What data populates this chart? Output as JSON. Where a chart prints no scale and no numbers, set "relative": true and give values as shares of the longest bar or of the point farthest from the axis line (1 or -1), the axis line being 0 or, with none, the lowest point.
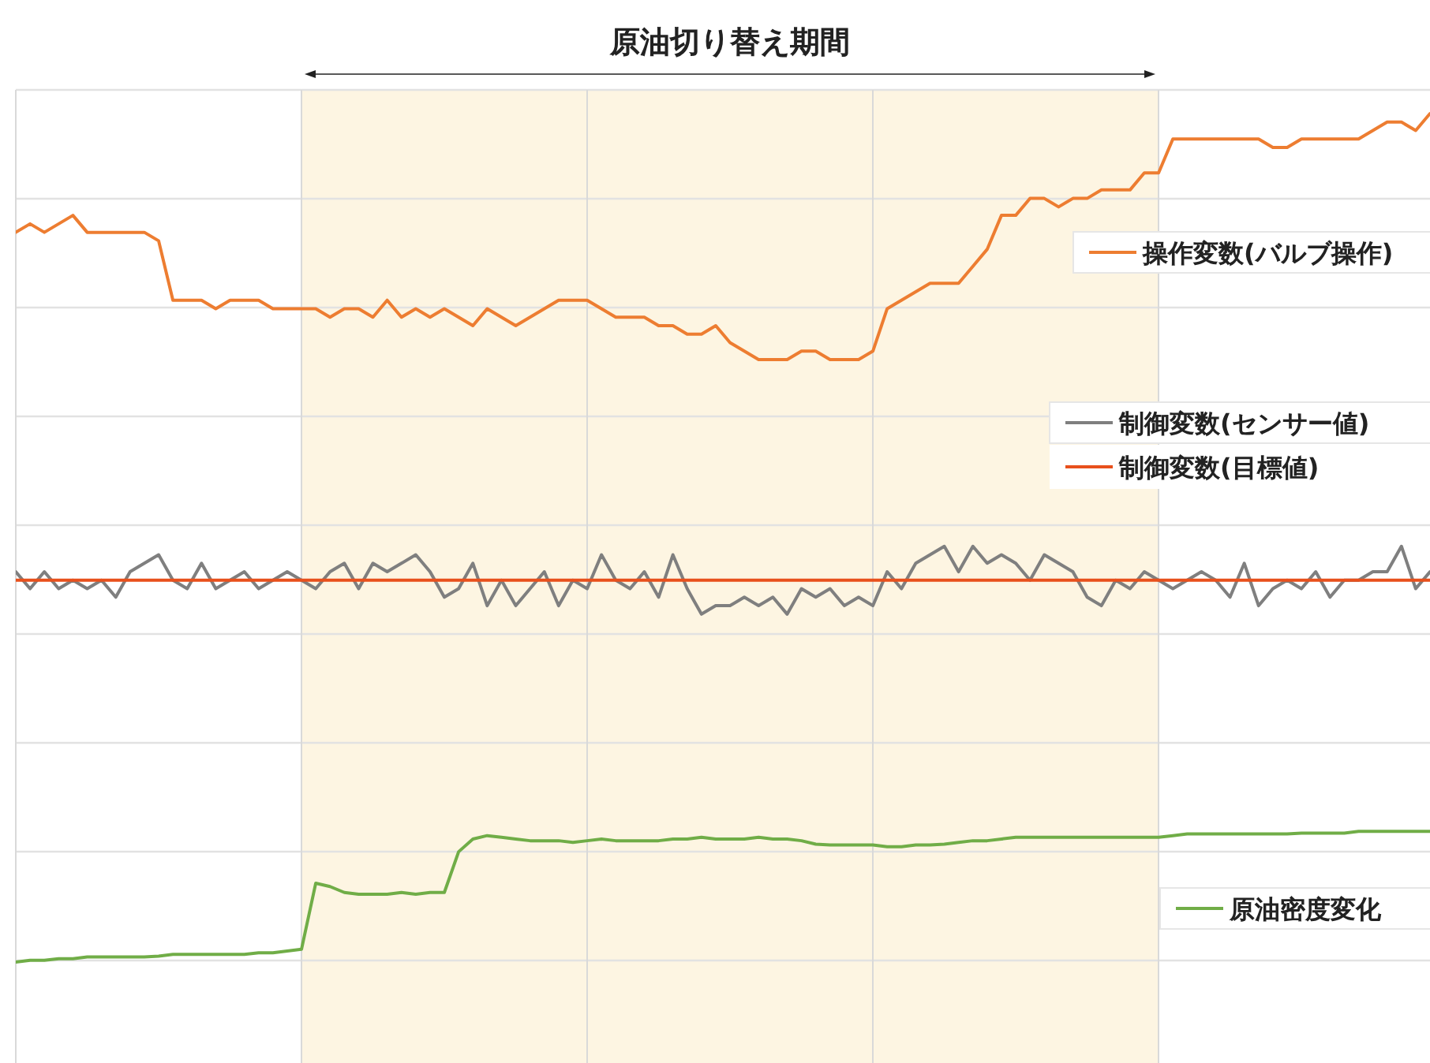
{
  "chart_data": {
    "type": "line",
    "relative": true,
    "grid": true,
    "legend": "right",
    "marker": "none",
    "line_style": "solid",
    "categories": [
      null,
      null,
      null,
      null,
      null,
      null,
      null,
      null,
      null,
      null,
      null,
      null,
      null,
      null,
      null,
      null,
      null,
      null,
      null,
      null,
      null,
      null,
      null,
      null,
      null,
      null,
      null,
      null,
      null,
      null,
      null,
      null,
      null,
      null,
      null,
      null,
      null,
      null,
      null,
      null,
      null,
      null,
      null,
      null,
      null,
      null,
      null,
      null,
      null,
      null,
      null,
      null,
      null,
      null,
      null,
      null,
      null,
      null,
      null,
      null,
      null,
      null,
      null,
      null,
      null,
      null,
      null,
      null,
      null,
      null,
      null,
      null,
      null,
      null,
      null,
      null,
      null,
      null,
      null,
      null,
      null,
      null,
      null,
      null,
      null,
      null,
      null,
      null,
      null,
      null,
      null,
      null,
      null,
      null,
      null,
      null,
      null,
      null,
      null,
      null
    ],
    "title": "原油切り替え期間",
    "series": [
      {
        "name": "操作変数(バルブ操作)",
        "color": "#ed7d31",
        "values": [
          0.86,
          0.87,
          0.86,
          0.87,
          0.88,
          0.86,
          0.86,
          0.86,
          0.86,
          0.86,
          0.85,
          0.78,
          0.78,
          0.78,
          0.77,
          0.78,
          0.78,
          0.78,
          0.77,
          0.77,
          0.77,
          0.77,
          0.76,
          0.77,
          0.77,
          0.76,
          0.78,
          0.76,
          0.77,
          0.76,
          0.77,
          0.76,
          0.75,
          0.77,
          0.76,
          0.75,
          0.76,
          0.77,
          0.78,
          0.78,
          0.78,
          0.77,
          0.76,
          0.76,
          0.76,
          0.75,
          0.75,
          0.74,
          0.74,
          0.75,
          0.73,
          0.72,
          0.71,
          0.71,
          0.71,
          0.72,
          0.72,
          0.71,
          0.71,
          0.71,
          0.72,
          0.77,
          0.78,
          0.79,
          0.8,
          0.8,
          0.8,
          0.82,
          0.84,
          0.88,
          0.88,
          0.9,
          0.9,
          0.89,
          0.9,
          0.9,
          0.91,
          0.91,
          0.91,
          0.93,
          0.93,
          0.97,
          0.97,
          0.97,
          0.97,
          0.97,
          0.97,
          0.97,
          0.96,
          0.96,
          0.97,
          0.97,
          0.97,
          0.97,
          0.97,
          0.98,
          0.99,
          0.99,
          0.98,
          1
        ]
      },
      {
        "name": "制御変数(センサー値)",
        "color": "#7f7f7f",
        "values": [
          0.46,
          0.44,
          0.46,
          0.44,
          0.45,
          0.44,
          0.45,
          0.43,
          0.46,
          0.47,
          0.48,
          0.45,
          0.44,
          0.47,
          0.44,
          0.45,
          0.46,
          0.44,
          0.45,
          0.46,
          0.45,
          0.44,
          0.46,
          0.47,
          0.44,
          0.47,
          0.46,
          0.47,
          0.48,
          0.46,
          0.43,
          0.44,
          0.47,
          0.42,
          0.45,
          0.42,
          0.44,
          0.46,
          0.42,
          0.45,
          0.44,
          0.48,
          0.45,
          0.44,
          0.46,
          0.43,
          0.48,
          0.44,
          0.41,
          0.42,
          0.42,
          0.43,
          0.42,
          0.43,
          0.41,
          0.44,
          0.43,
          0.44,
          0.42,
          0.43,
          0.42,
          0.46,
          0.44,
          0.47,
          0.48,
          0.49,
          0.46,
          0.49,
          0.47,
          0.48,
          0.47,
          0.45,
          0.48,
          0.47,
          0.46,
          0.43,
          0.42,
          0.45,
          0.44,
          0.46,
          0.45,
          0.44,
          0.45,
          0.46,
          0.45,
          0.43,
          0.47,
          0.42,
          0.44,
          0.45,
          0.44,
          0.46,
          0.43,
          0.45,
          0.45,
          0.46,
          0.46,
          0.49,
          0.44,
          0.46
        ]
      },
      {
        "name": "制御変数(目標値)",
        "color": "#e8501c",
        "values": [
          0.45,
          0.45,
          0.45,
          0.45,
          0.45,
          0.45,
          0.45,
          0.45,
          0.45,
          0.45,
          0.45,
          0.45,
          0.45,
          0.45,
          0.45,
          0.45,
          0.45,
          0.45,
          0.45,
          0.45,
          0.45,
          0.45,
          0.45,
          0.45,
          0.45,
          0.45,
          0.45,
          0.45,
          0.45,
          0.45,
          0.45,
          0.45,
          0.45,
          0.45,
          0.45,
          0.45,
          0.45,
          0.45,
          0.45,
          0.45,
          0.45,
          0.45,
          0.45,
          0.45,
          0.45,
          0.45,
          0.45,
          0.45,
          0.45,
          0.45,
          0.45,
          0.45,
          0.45,
          0.45,
          0.45,
          0.45,
          0.45,
          0.45,
          0.45,
          0.45,
          0.45,
          0.45,
          0.45,
          0.45,
          0.45,
          0.45,
          0.45,
          0.45,
          0.45,
          0.45,
          0.45,
          0.45,
          0.45,
          0.45,
          0.45,
          0.45,
          0.45,
          0.45,
          0.45,
          0.45,
          0.45,
          0.45,
          0.45,
          0.45,
          0.45,
          0.45,
          0.45,
          0.45,
          0.45,
          0.45,
          0.45,
          0.45,
          0.45,
          0.45,
          0.45,
          0.45,
          0.45,
          0.45,
          0.45,
          0.45
        ]
      },
      {
        "name": "原油密度変化",
        "color": "#70ad47",
        "values": [
          0,
          0.002,
          0.002,
          0.004,
          0.004,
          0.006,
          0.006,
          0.006,
          0.006,
          0.006,
          0.007,
          0.009,
          0.009,
          0.009,
          0.009,
          0.009,
          0.009,
          0.011,
          0.011,
          0.013,
          0.015,
          0.093,
          0.089,
          0.082,
          0.08,
          0.08,
          0.08,
          0.082,
          0.08,
          0.082,
          0.082,
          0.13,
          0.145,
          0.149,
          0.147,
          0.145,
          0.143,
          0.143,
          0.143,
          0.141,
          0.143,
          0.145,
          0.143,
          0.143,
          0.143,
          0.143,
          0.145,
          0.145,
          0.147,
          0.145,
          0.145,
          0.145,
          0.147,
          0.145,
          0.145,
          0.143,
          0.139,
          0.138,
          0.138,
          0.138,
          0.138,
          0.136,
          0.136,
          0.138,
          0.138,
          0.139,
          0.141,
          0.143,
          0.143,
          0.145,
          0.147,
          0.147,
          0.147,
          0.147,
          0.147,
          0.147,
          0.147,
          0.147,
          0.147,
          0.147,
          0.147,
          0.149,
          0.151,
          0.151,
          0.151,
          0.151,
          0.151,
          0.151,
          0.151,
          0.151,
          0.152,
          0.152,
          0.152,
          0.152,
          0.154,
          0.154,
          0.154,
          0.154,
          0.154,
          0.154
        ]
      }
    ]
  }
}
